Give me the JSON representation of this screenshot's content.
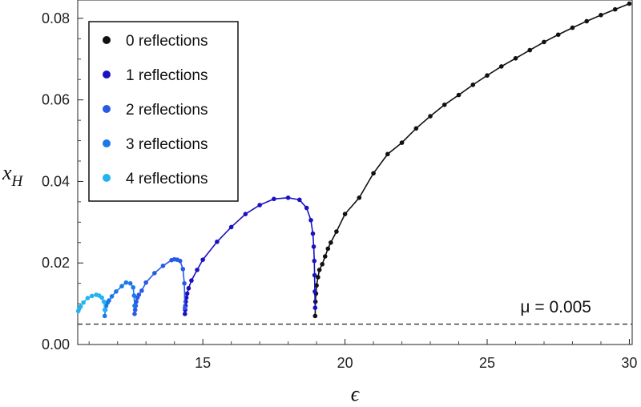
{
  "chart_data": {
    "type": "line",
    "xlabel": "ϵ",
    "ylabel": "x",
    "ylabel_sub": "H",
    "xlim": [
      10.6,
      30.1
    ],
    "ylim": [
      0,
      0.0845
    ],
    "x_ticks": [
      15,
      20,
      25,
      30
    ],
    "x_tick_labels": [
      "15",
      "20",
      "25",
      "30"
    ],
    "y_ticks": [
      0,
      0.02,
      0.04,
      0.06,
      0.08
    ],
    "y_tick_labels": [
      "0.00",
      "0.02",
      "0.04",
      "0.06",
      "0.08"
    ],
    "legend_position": "top-left",
    "annotation": {
      "text": "μ = 0.005",
      "y": 0.005,
      "style": "dashed"
    },
    "series": [
      {
        "name": "0 reflections",
        "color": "#111111",
        "x": [
          18.95,
          18.96,
          18.98,
          19.0,
          19.05,
          19.1,
          19.2,
          19.3,
          19.4,
          19.5,
          19.7,
          20.0,
          20.5,
          21.0,
          21.5,
          22.0,
          22.5,
          23.0,
          23.5,
          24.0,
          24.5,
          25.0,
          25.5,
          26.0,
          26.5,
          27.0,
          27.5,
          28.0,
          28.5,
          29.0,
          29.5,
          30.0
        ],
        "y": [
          0.007,
          0.0105,
          0.0125,
          0.0145,
          0.0165,
          0.0183,
          0.0197,
          0.0216,
          0.0235,
          0.025,
          0.0277,
          0.032,
          0.036,
          0.042,
          0.0467,
          0.0495,
          0.053,
          0.056,
          0.0588,
          0.0612,
          0.0637,
          0.066,
          0.0682,
          0.0702,
          0.0722,
          0.0742,
          0.076,
          0.0777,
          0.0793,
          0.0808,
          0.0822,
          0.0836
        ]
      },
      {
        "name": "1 reflections",
        "color": "#1a12c0",
        "x": [
          14.37,
          14.38,
          14.39,
          14.4,
          14.42,
          14.45,
          14.5,
          14.6,
          14.8,
          15.0,
          15.5,
          16.0,
          16.5,
          17.0,
          17.5,
          18.0,
          18.4,
          18.65,
          18.8,
          18.87,
          18.9,
          18.92,
          18.93,
          18.94,
          18.95
        ],
        "y": [
          0.0075,
          0.0085,
          0.0095,
          0.0105,
          0.0115,
          0.0125,
          0.0138,
          0.0157,
          0.0183,
          0.0208,
          0.0252,
          0.0288,
          0.032,
          0.0342,
          0.0357,
          0.036,
          0.0355,
          0.0335,
          0.0305,
          0.0272,
          0.024,
          0.0205,
          0.017,
          0.013,
          0.009
        ]
      },
      {
        "name": "2 reflections",
        "color": "#2a59e8",
        "x": [
          12.6,
          12.62,
          12.64,
          12.66,
          12.7,
          12.75,
          12.85,
          13.0,
          13.3,
          13.6,
          13.9,
          14.0,
          14.1,
          14.2,
          14.3,
          14.35,
          14.37
        ],
        "y": [
          0.0075,
          0.0085,
          0.0095,
          0.0105,
          0.0115,
          0.0122,
          0.0132,
          0.0152,
          0.0175,
          0.0193,
          0.0207,
          0.0209,
          0.0208,
          0.0205,
          0.0185,
          0.015,
          0.009
        ]
      },
      {
        "name": "3 reflections",
        "color": "#1a78e8",
        "x": [
          11.55,
          11.57,
          11.6,
          11.65,
          11.7,
          11.8,
          11.95,
          12.15,
          12.3,
          12.45,
          12.55,
          12.58,
          12.6
        ],
        "y": [
          0.007,
          0.0085,
          0.0095,
          0.0103,
          0.0108,
          0.0118,
          0.013,
          0.0143,
          0.0152,
          0.015,
          0.014,
          0.012,
          0.0095
        ]
      },
      {
        "name": "4 reflections",
        "color": "#22b3f0",
        "x": [
          10.62,
          10.65,
          10.7,
          10.8,
          10.95,
          11.1,
          11.25,
          11.35,
          11.45,
          11.52,
          11.55
        ],
        "y": [
          0.0082,
          0.0088,
          0.0093,
          0.0103,
          0.0114,
          0.0119,
          0.0122,
          0.012,
          0.0115,
          0.0105,
          0.0085
        ]
      }
    ]
  }
}
